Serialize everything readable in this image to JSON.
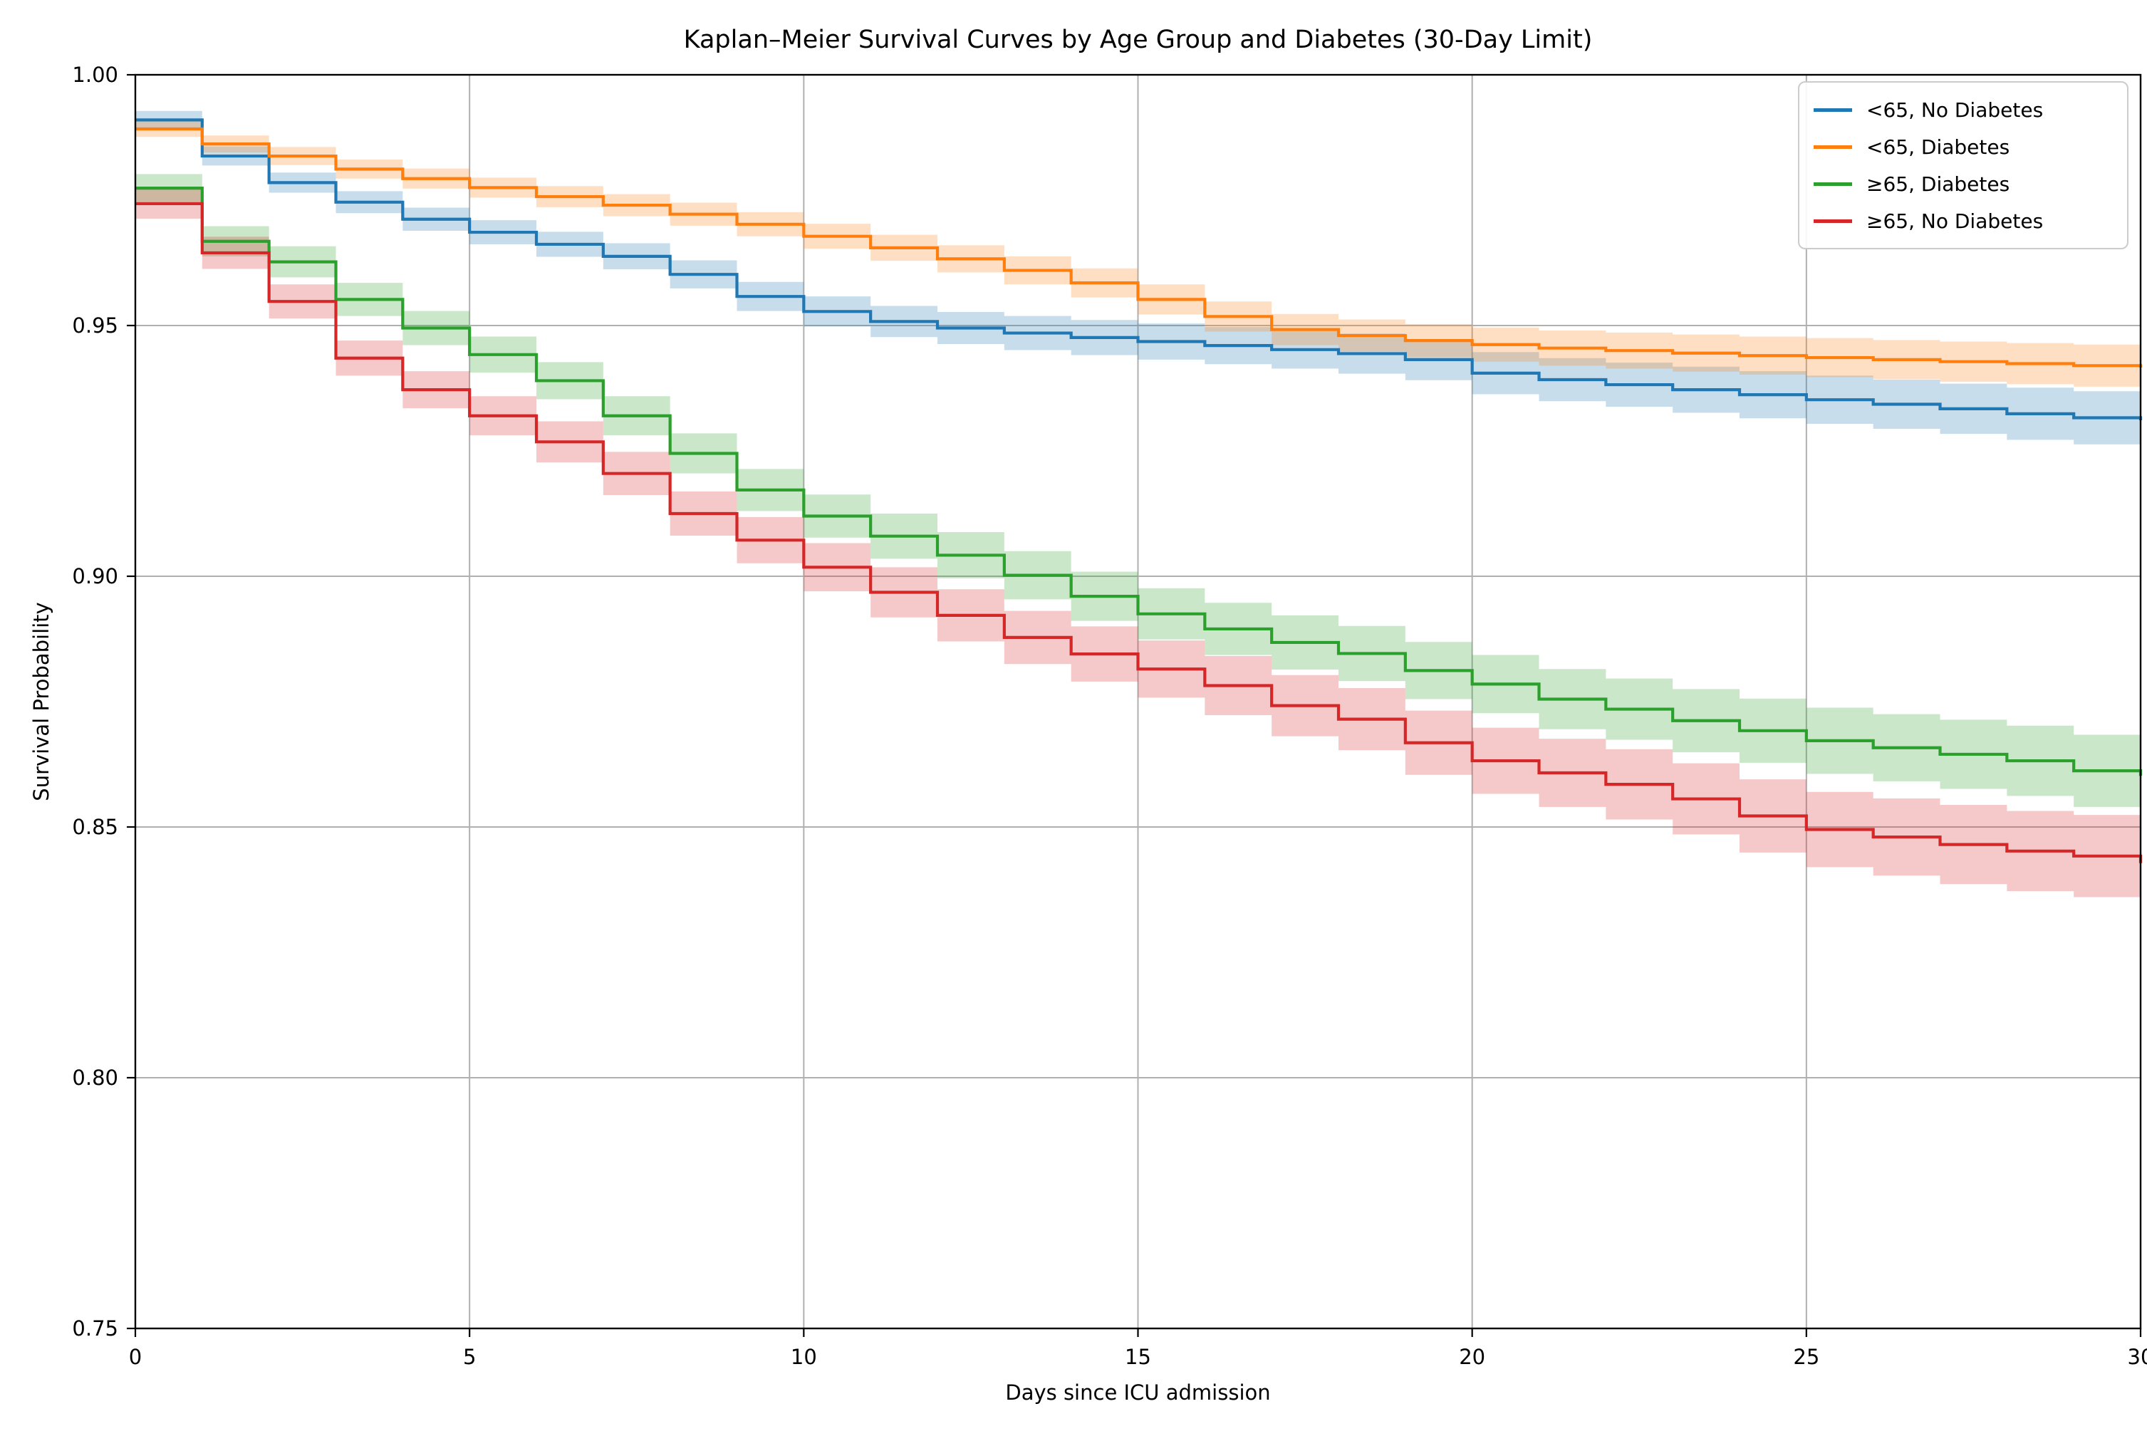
{
  "title": "Kaplan–Meier Survival Curves by Age Group and Diabetes (30-Day Limit)",
  "xlabel": "Days since ICU admission",
  "ylabel": "Survival Probability",
  "chart_data": {
    "type": "line",
    "subtype": "kaplan-meier-step-with-ci-bands",
    "title": "Kaplan–Meier Survival Curves by Age Group and Diabetes (30-Day Limit)",
    "xlabel": "Days since ICU admission",
    "ylabel": "Survival Probability",
    "xlim": [
      0,
      30
    ],
    "ylim": [
      0.75,
      1.0
    ],
    "x_ticks": [
      0,
      5,
      10,
      15,
      20,
      25,
      30
    ],
    "y_ticks": [
      "1.00",
      "0.95",
      "0.90",
      "0.85",
      "0.80",
      "0.75"
    ],
    "grid": true,
    "grid_color": "#b0b0b0",
    "legend_position": "upper right",
    "band_opacity": 0.25,
    "x": [
      0,
      1,
      2,
      3,
      4,
      5,
      6,
      7,
      8,
      9,
      10,
      11,
      12,
      13,
      14,
      15,
      16,
      17,
      18,
      19,
      20,
      21,
      22,
      23,
      24,
      25,
      26,
      27,
      28,
      29,
      30
    ],
    "series": [
      {
        "name": "<65, No Diabetes",
        "color": "#1f77b4",
        "values": [
          0.991,
          0.9838,
          0.9785,
          0.9746,
          0.9712,
          0.9686,
          0.9662,
          0.9638,
          0.9602,
          0.9558,
          0.9528,
          0.9508,
          0.9495,
          0.9485,
          0.9476,
          0.9468,
          0.946,
          0.9452,
          0.9444,
          0.9432,
          0.9405,
          0.9392,
          0.9382,
          0.9372,
          0.9362,
          0.9352,
          0.9343,
          0.9334,
          0.9324,
          0.9316,
          0.9311
        ],
        "ci_half": [
          0.0018,
          0.0019,
          0.002,
          0.0022,
          0.0023,
          0.0024,
          0.0025,
          0.0026,
          0.0028,
          0.0029,
          0.003,
          0.0031,
          0.0032,
          0.0034,
          0.0035,
          0.0036,
          0.0037,
          0.0038,
          0.004,
          0.0041,
          0.0042,
          0.0043,
          0.0044,
          0.0046,
          0.0047,
          0.0048,
          0.0049,
          0.005,
          0.0052,
          0.0053,
          0.0054
        ]
      },
      {
        "name": "<65, Diabetes",
        "color": "#ff7f0e",
        "values": [
          0.9892,
          0.9862,
          0.9838,
          0.9812,
          0.9793,
          0.9775,
          0.9757,
          0.974,
          0.9722,
          0.9702,
          0.9678,
          0.9655,
          0.9633,
          0.961,
          0.9585,
          0.9552,
          0.9518,
          0.9492,
          0.948,
          0.947,
          0.9462,
          0.9455,
          0.945,
          0.9445,
          0.944,
          0.9436,
          0.9432,
          0.9428,
          0.9424,
          0.942,
          0.9416
        ],
        "ci_half": [
          0.0016,
          0.0017,
          0.0018,
          0.0019,
          0.002,
          0.002,
          0.0021,
          0.0022,
          0.0023,
          0.0024,
          0.0025,
          0.0026,
          0.0027,
          0.0028,
          0.0029,
          0.003,
          0.003,
          0.0031,
          0.0032,
          0.0033,
          0.0034,
          0.0035,
          0.0036,
          0.0037,
          0.0038,
          0.0039,
          0.0039,
          0.004,
          0.0041,
          0.0042,
          0.0043
        ]
      },
      {
        "name": "≥65, Diabetes",
        "color": "#2ca02c",
        "values": [
          0.9774,
          0.9668,
          0.9627,
          0.9552,
          0.9495,
          0.9442,
          0.939,
          0.932,
          0.9245,
          0.9172,
          0.912,
          0.908,
          0.9042,
          0.9002,
          0.896,
          0.8925,
          0.8895,
          0.8868,
          0.8846,
          0.8812,
          0.8785,
          0.8755,
          0.8735,
          0.8712,
          0.8692,
          0.8672,
          0.8658,
          0.8645,
          0.8632,
          0.8612,
          0.8602
        ],
        "ci_half": [
          0.0028,
          0.003,
          0.0031,
          0.0033,
          0.0034,
          0.0036,
          0.0037,
          0.0039,
          0.004,
          0.0042,
          0.0043,
          0.0045,
          0.0046,
          0.0048,
          0.0049,
          0.0051,
          0.0052,
          0.0054,
          0.0055,
          0.0057,
          0.0058,
          0.006,
          0.0061,
          0.0063,
          0.0064,
          0.0066,
          0.0067,
          0.0069,
          0.007,
          0.0072,
          0.0073
        ]
      },
      {
        "name": "≥65, No Diabetes",
        "color": "#d62728",
        "values": [
          0.9743,
          0.9645,
          0.9548,
          0.9435,
          0.9372,
          0.932,
          0.9268,
          0.9205,
          0.9125,
          0.9072,
          0.9018,
          0.8968,
          0.8922,
          0.8878,
          0.8845,
          0.8815,
          0.8782,
          0.8742,
          0.8715,
          0.8668,
          0.8632,
          0.8608,
          0.8585,
          0.8556,
          0.8522,
          0.8495,
          0.848,
          0.8465,
          0.8452,
          0.8442,
          0.8428
        ],
        "ci_half": [
          0.003,
          0.0032,
          0.0034,
          0.0035,
          0.0037,
          0.0039,
          0.0041,
          0.0043,
          0.0044,
          0.0046,
          0.0048,
          0.005,
          0.0052,
          0.0053,
          0.0055,
          0.0057,
          0.0059,
          0.0061,
          0.0062,
          0.0064,
          0.0066,
          0.0068,
          0.007,
          0.0071,
          0.0073,
          0.0075,
          0.0077,
          0.0079,
          0.008,
          0.0082,
          0.0084
        ]
      }
    ]
  }
}
